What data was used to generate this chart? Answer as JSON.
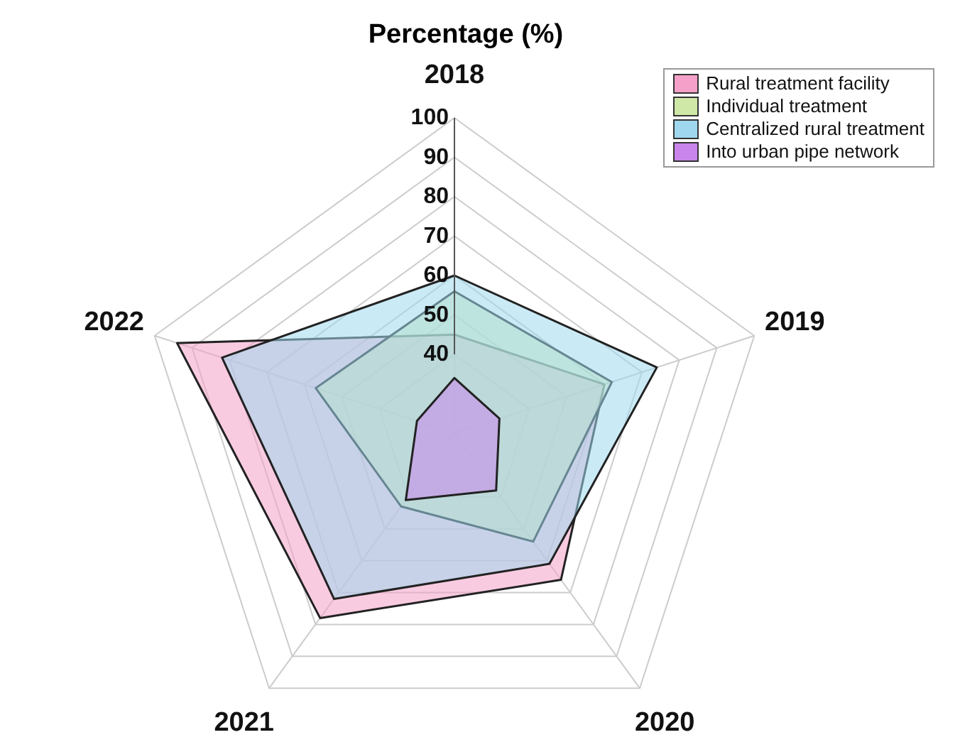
{
  "chart_data": {
    "type": "radar",
    "title": "Percentage (%)",
    "categories": [
      "2018",
      "2019",
      "2020",
      "2021",
      "2022"
    ],
    "series": [
      {
        "name": "Rural treatment facility",
        "color": "#f4a0c8",
        "values": [
          45,
          60,
          66,
          78,
          94
        ]
      },
      {
        "name": "Individual treatment",
        "color": "#cfe8a8",
        "values": [
          56,
          62,
          54,
          43,
          57
        ]
      },
      {
        "name": "Centralized rural treatment",
        "color": "#9fd8ee",
        "values": [
          60,
          74,
          61,
          72,
          82
        ]
      },
      {
        "name": "Into urban pipe network",
        "color": "#c985ec",
        "values": [
          34,
          32,
          38,
          41,
          30
        ]
      }
    ],
    "ylim": [
      20,
      100
    ],
    "yticks": [
      40,
      50,
      60,
      70,
      80,
      90,
      100
    ],
    "grid": true,
    "legend": "top right",
    "marker": "none"
  }
}
